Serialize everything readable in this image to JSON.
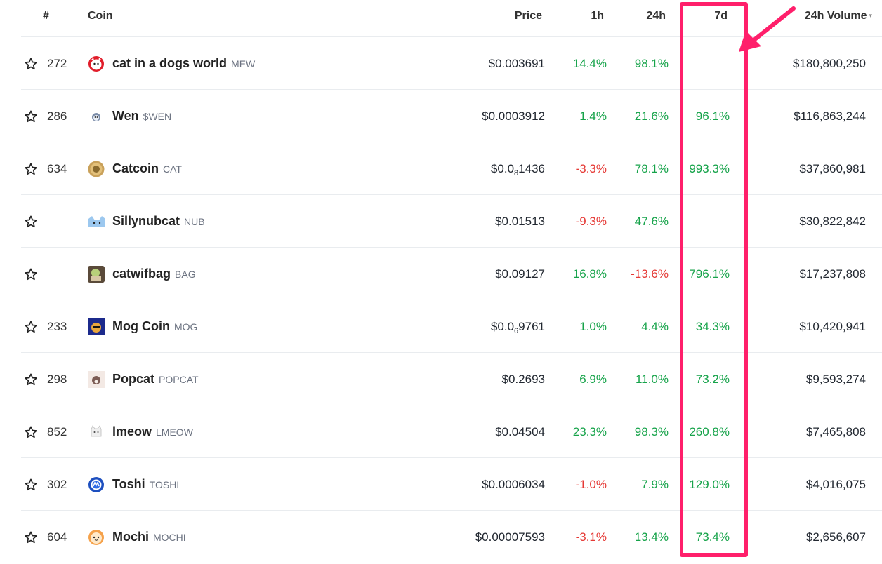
{
  "headers": {
    "rank": "#",
    "coin": "Coin",
    "price": "Price",
    "h1": "1h",
    "h24": "24h",
    "d7": "7d",
    "volume": "24h Volume"
  },
  "colors": {
    "positive": "#16a34a",
    "negative": "#e53935",
    "highlight": "#ff1f6b"
  },
  "rows": [
    {
      "rank": "272",
      "name": "cat in a dogs world",
      "symbol": "MEW",
      "price": "$0.003691",
      "price_sub": "",
      "price_tail": "",
      "h1": "14.4%",
      "h24": "98.1%",
      "d7": "",
      "volume": "$180,800,250",
      "icon": "mew-coin-icon"
    },
    {
      "rank": "286",
      "name": "Wen",
      "symbol": "$WEN",
      "price": "$0.0003912",
      "price_sub": "",
      "price_tail": "",
      "h1": "1.4%",
      "h24": "21.6%",
      "d7": "96.1%",
      "volume": "$116,863,244",
      "icon": "wen-coin-icon"
    },
    {
      "rank": "634",
      "name": "Catcoin",
      "symbol": "CAT",
      "price": "$0.0",
      "price_sub": "8",
      "price_tail": "1436",
      "h1": "-3.3%",
      "h24": "78.1%",
      "d7": "993.3%",
      "volume": "$37,860,981",
      "icon": "catcoin-icon"
    },
    {
      "rank": "",
      "name": "Sillynubcat",
      "symbol": "NUB",
      "price": "$0.01513",
      "price_sub": "",
      "price_tail": "",
      "h1": "-9.3%",
      "h24": "47.6%",
      "d7": "",
      "volume": "$30,822,842",
      "icon": "sillynubcat-icon"
    },
    {
      "rank": "",
      "name": "catwifbag",
      "symbol": "BAG",
      "price": "$0.09127",
      "price_sub": "",
      "price_tail": "",
      "h1": "16.8%",
      "h24": "-13.6%",
      "d7": "796.1%",
      "volume": "$17,237,808",
      "icon": "catwifbag-icon"
    },
    {
      "rank": "233",
      "name": "Mog Coin",
      "symbol": "MOG",
      "price": "$0.0",
      "price_sub": "6",
      "price_tail": "9761",
      "h1": "1.0%",
      "h24": "4.4%",
      "d7": "34.3%",
      "volume": "$10,420,941",
      "icon": "mog-coin-icon"
    },
    {
      "rank": "298",
      "name": "Popcat",
      "symbol": "POPCAT",
      "price": "$0.2693",
      "price_sub": "",
      "price_tail": "",
      "h1": "6.9%",
      "h24": "11.0%",
      "d7": "73.2%",
      "volume": "$9,593,274",
      "icon": "popcat-icon"
    },
    {
      "rank": "852",
      "name": "lmeow",
      "symbol": "LMEOW",
      "price": "$0.04504",
      "price_sub": "",
      "price_tail": "",
      "h1": "23.3%",
      "h24": "98.3%",
      "d7": "260.8%",
      "volume": "$7,465,808",
      "icon": "lmeow-icon"
    },
    {
      "rank": "302",
      "name": "Toshi",
      "symbol": "TOSHI",
      "price": "$0.0006034",
      "price_sub": "",
      "price_tail": "",
      "h1": "-1.0%",
      "h24": "7.9%",
      "d7": "129.0%",
      "volume": "$4,016,075",
      "icon": "toshi-icon"
    },
    {
      "rank": "604",
      "name": "Mochi",
      "symbol": "MOCHI",
      "price": "$0.00007593",
      "price_sub": "",
      "price_tail": "",
      "h1": "-3.1%",
      "h24": "13.4%",
      "d7": "73.4%",
      "volume": "$2,656,607",
      "icon": "mochi-icon"
    }
  ]
}
